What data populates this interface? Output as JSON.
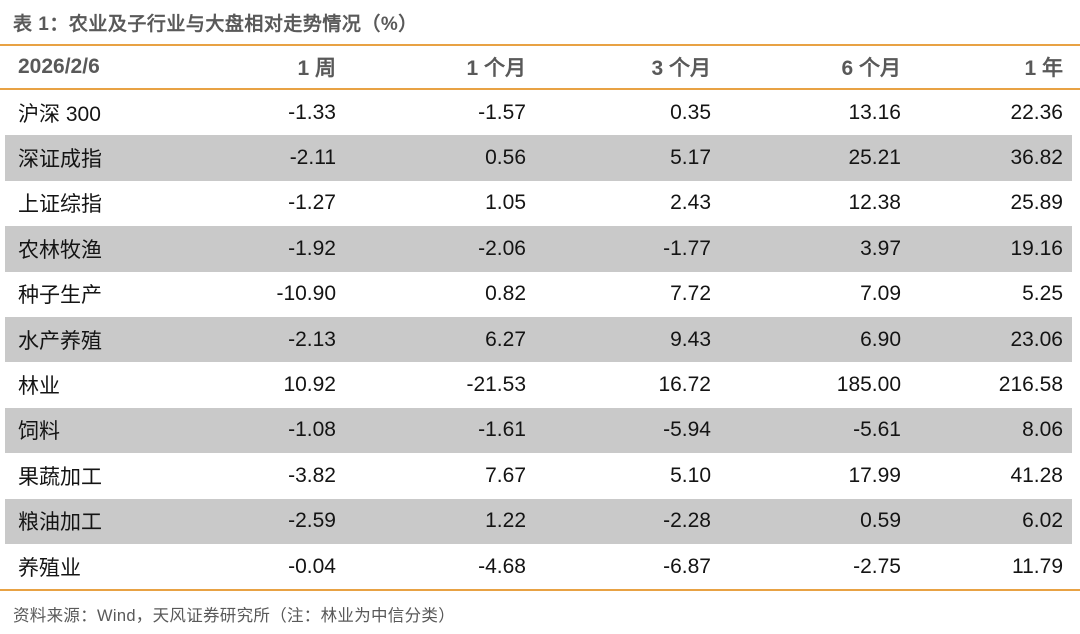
{
  "table": {
    "title": "表 1：农业及子行业与大盘相对走势情况（%）",
    "header": [
      "2026/2/6",
      "1 周",
      "1 个月",
      "3 个月",
      "6 个月",
      "1 年"
    ],
    "rows": [
      {
        "name": "沪深 300",
        "values": [
          "-1.33",
          "-1.57",
          "0.35",
          "13.16",
          "22.36"
        ]
      },
      {
        "name": "深证成指",
        "values": [
          "-2.11",
          "0.56",
          "5.17",
          "25.21",
          "36.82"
        ]
      },
      {
        "name": "上证综指",
        "values": [
          "-1.27",
          "1.05",
          "2.43",
          "12.38",
          "25.89"
        ]
      },
      {
        "name": "农林牧渔",
        "values": [
          "-1.92",
          "-2.06",
          "-1.77",
          "3.97",
          "19.16"
        ]
      },
      {
        "name": "种子生产",
        "values": [
          "-10.90",
          "0.82",
          "7.72",
          "7.09",
          "5.25"
        ]
      },
      {
        "name": "水产养殖",
        "values": [
          "-2.13",
          "6.27",
          "9.43",
          "6.90",
          "23.06"
        ]
      },
      {
        "name": "林业",
        "values": [
          "10.92",
          "-21.53",
          "16.72",
          "185.00",
          "216.58"
        ]
      },
      {
        "name": "饲料",
        "values": [
          "-1.08",
          "-1.61",
          "-5.94",
          "-5.61",
          "8.06"
        ]
      },
      {
        "name": "果蔬加工",
        "values": [
          "-3.82",
          "7.67",
          "5.10",
          "17.99",
          "41.28"
        ]
      },
      {
        "name": "粮油加工",
        "values": [
          "-2.59",
          "1.22",
          "-2.28",
          "0.59",
          "6.02"
        ]
      },
      {
        "name": "养殖业",
        "values": [
          "-0.04",
          "-4.68",
          "-6.87",
          "-2.75",
          "11.79"
        ]
      }
    ],
    "source_note": "资料来源：Wind，天风证券研究所（注：林业为中信分类）"
  },
  "colors": {
    "accent_orange": "#E8A244",
    "row_stripe_gray": "#C9C9C9",
    "heading_gray": "#595959",
    "data_text": "#141414"
  }
}
